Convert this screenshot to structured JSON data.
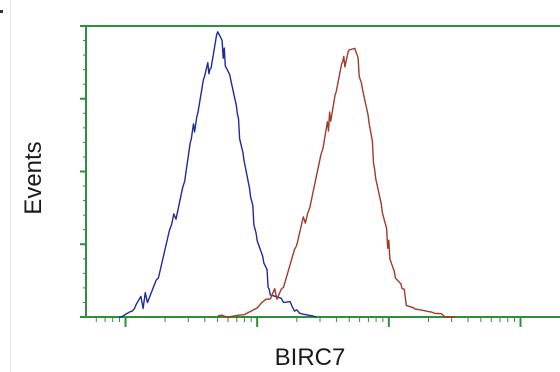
{
  "chart_data": {
    "type": "line",
    "xlabel": "BIRC7",
    "ylabel": "Events",
    "x_scale": "log",
    "x_range": [
      -0.3,
      3.3
    ],
    "y_range": [
      0,
      100
    ],
    "grid": false,
    "legend": "none",
    "series": [
      {
        "color": "#1f2a9c",
        "peak_x": 0.7,
        "peak_y": 98,
        "x": [
          -0.05,
          0.05,
          0.15,
          0.25,
          0.35,
          0.45,
          0.5,
          0.55,
          0.6,
          0.65,
          0.7,
          0.75,
          0.8,
          0.85,
          0.9,
          0.95,
          1.0,
          1.05,
          1.1,
          1.2,
          1.3,
          1.45
        ],
        "y": [
          0,
          2,
          6,
          14,
          30,
          48,
          60,
          72,
          82,
          88,
          98,
          90,
          82,
          68,
          55,
          40,
          28,
          18,
          10,
          5,
          2,
          0
        ]
      },
      {
        "color": "#a23a2a",
        "peak_x": 1.7,
        "peak_y": 93,
        "x": [
          0.7,
          0.9,
          1.1,
          1.2,
          1.3,
          1.4,
          1.5,
          1.55,
          1.6,
          1.65,
          1.7,
          1.75,
          1.8,
          1.85,
          1.9,
          1.95,
          2.0,
          2.05,
          2.1,
          2.2,
          2.35,
          2.5
        ],
        "y": [
          0,
          1,
          5,
          12,
          24,
          40,
          58,
          68,
          78,
          86,
          93,
          90,
          80,
          66,
          50,
          36,
          24,
          14,
          8,
          3,
          1,
          0
        ]
      }
    ]
  }
}
